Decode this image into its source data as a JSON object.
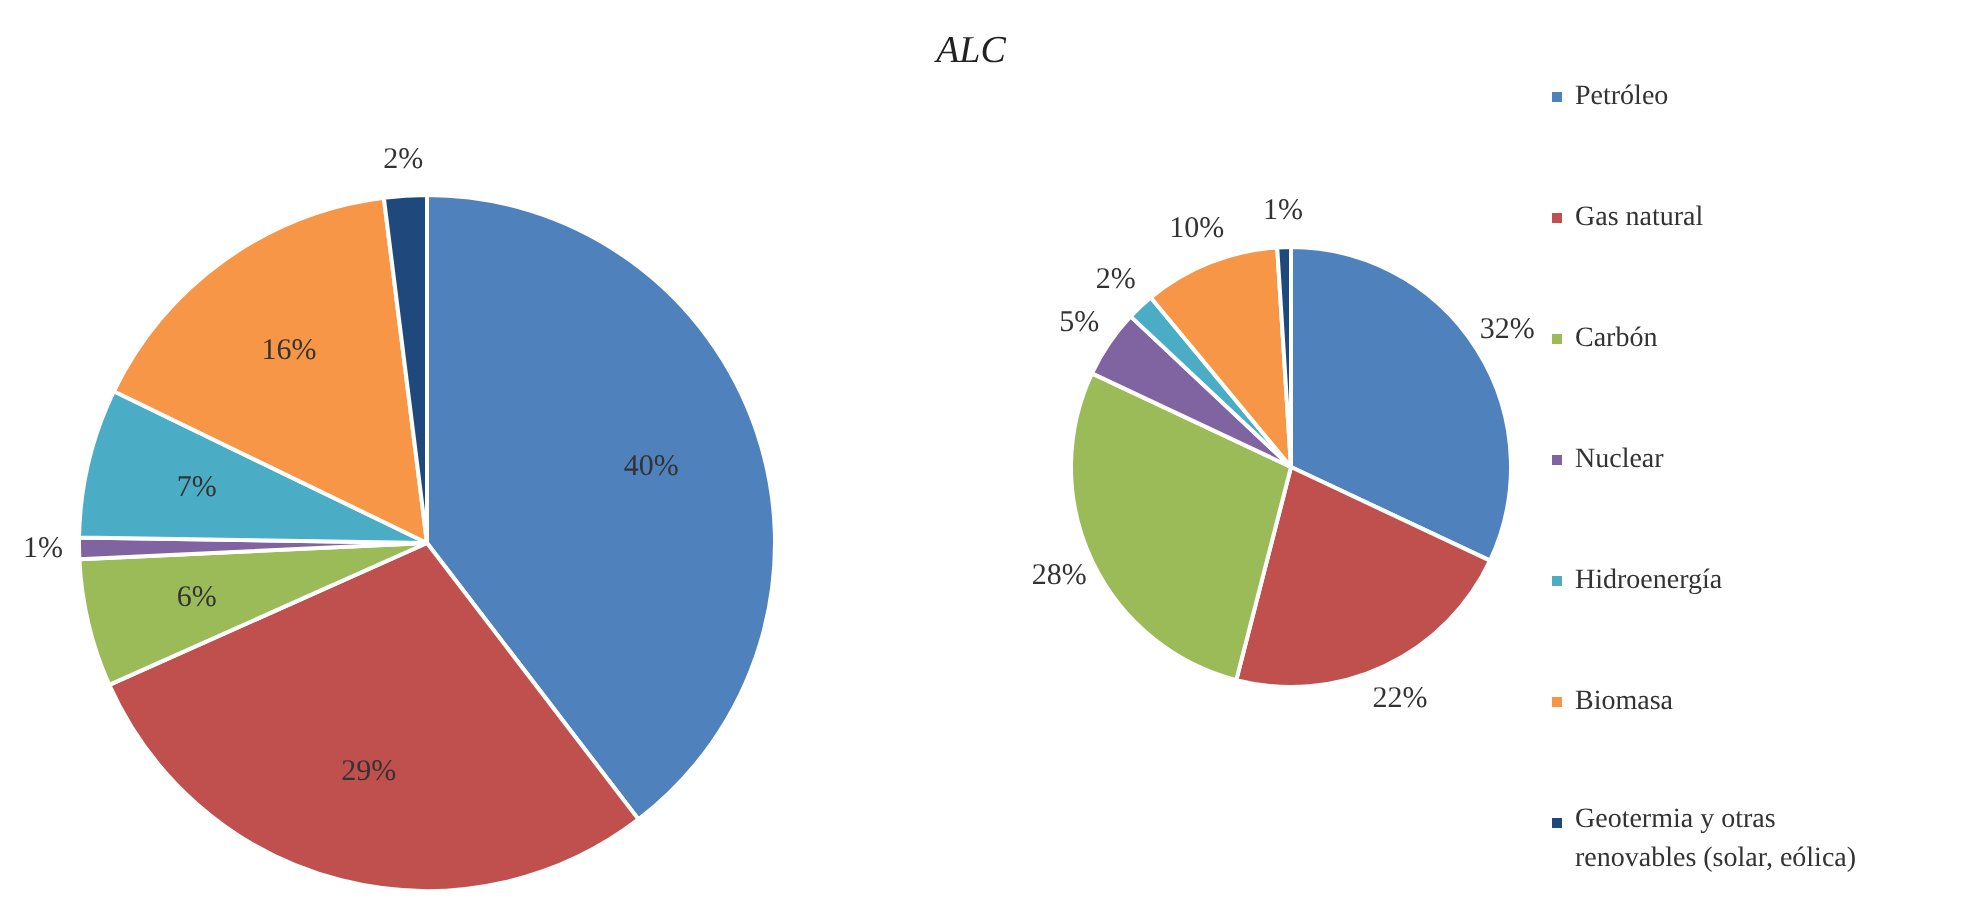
{
  "chart_data": [
    {
      "type": "pie",
      "title": "ALC",
      "categories": [
        "Petróleo",
        "Gas natural",
        "Carbón",
        "Nuclear",
        "Hidroenergía",
        "Biomasa",
        "Geotermia y otras renovables (solar, eólica)"
      ],
      "values": [
        40,
        29,
        6,
        1,
        7,
        16,
        2
      ],
      "value_labels": [
        "40%",
        "29%",
        "6%",
        "1%",
        "7%",
        "16%",
        "2%"
      ],
      "colors": [
        "#4f81bd",
        "#c0504d",
        "#9bbb59",
        "#8064a2",
        "#4bacc6",
        "#f79646",
        "#1f497d"
      ],
      "legend": "right"
    },
    {
      "type": "pie",
      "categories": [
        null,
        null,
        null,
        null,
        null,
        null,
        null
      ],
      "values": [
        32,
        22,
        28,
        5,
        2,
        10,
        1
      ],
      "value_labels": [
        "32%",
        "22%",
        "28%",
        "5%",
        "2%",
        "10%",
        "1%"
      ],
      "colors": [
        "#4f81bd",
        "#c0504d",
        "#9bbb59",
        "#8064a2",
        "#4bacc6",
        "#f79646",
        "#1f497d"
      ]
    }
  ]
}
